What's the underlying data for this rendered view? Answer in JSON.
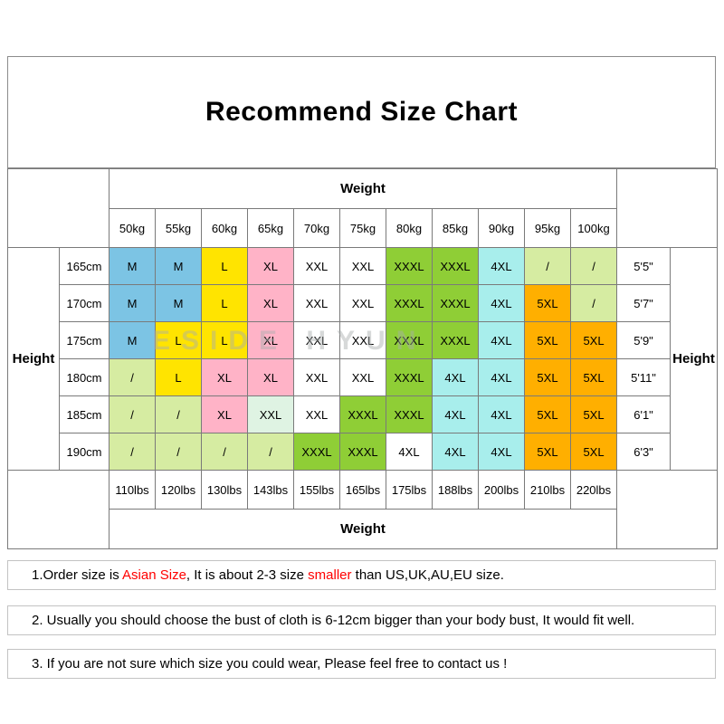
{
  "title": "Recommend Size Chart",
  "watermark": "ESIDE HYUN",
  "colors": {
    "blue": "#7CC4E4",
    "yellow": "#FFE400",
    "pink": "#FFB3C7",
    "white": "#FFFFFF",
    "green": "#8FCE36",
    "cyan": "#A8EEEC",
    "orange": "#FFAF00",
    "pale": "#D6ECA2",
    "mint": "#DFF3E3"
  },
  "table": {
    "weight_header_top": "Weight",
    "weight_header_bottom": "Weight",
    "height_header_left": "Height",
    "height_header_right": "Height",
    "kg_labels": [
      "50kg",
      "55kg",
      "60kg",
      "65kg",
      "70kg",
      "75kg",
      "80kg",
      "85kg",
      "90kg",
      "95kg",
      "100kg"
    ],
    "lbs_labels": [
      "110lbs",
      "120lbs",
      "130lbs",
      "143lbs",
      "155lbs",
      "165lbs",
      "175lbs",
      "188lbs",
      "200lbs",
      "210lbs",
      "220lbs"
    ],
    "rows": [
      {
        "cm": "165cm",
        "ft": "5'5\"",
        "cells": [
          {
            "t": "M",
            "c": "blue"
          },
          {
            "t": "M",
            "c": "blue"
          },
          {
            "t": "L",
            "c": "yellow"
          },
          {
            "t": "XL",
            "c": "pink"
          },
          {
            "t": "XXL",
            "c": "white"
          },
          {
            "t": "XXL",
            "c": "white"
          },
          {
            "t": "XXXL",
            "c": "green"
          },
          {
            "t": "XXXL",
            "c": "green"
          },
          {
            "t": "4XL",
            "c": "cyan"
          },
          {
            "t": "/",
            "c": "pale"
          },
          {
            "t": "/",
            "c": "pale"
          }
        ]
      },
      {
        "cm": "170cm",
        "ft": "5'7\"",
        "cells": [
          {
            "t": "M",
            "c": "blue"
          },
          {
            "t": "M",
            "c": "blue"
          },
          {
            "t": "L",
            "c": "yellow"
          },
          {
            "t": "XL",
            "c": "pink"
          },
          {
            "t": "XXL",
            "c": "white"
          },
          {
            "t": "XXL",
            "c": "white"
          },
          {
            "t": "XXXL",
            "c": "green"
          },
          {
            "t": "XXXL",
            "c": "green"
          },
          {
            "t": "4XL",
            "c": "cyan"
          },
          {
            "t": "5XL",
            "c": "orange"
          },
          {
            "t": "/",
            "c": "pale"
          }
        ]
      },
      {
        "cm": "175cm",
        "ft": "5'9\"",
        "cells": [
          {
            "t": "M",
            "c": "blue"
          },
          {
            "t": "L",
            "c": "yellow"
          },
          {
            "t": "L",
            "c": "yellow"
          },
          {
            "t": "XL",
            "c": "pink"
          },
          {
            "t": "XXL",
            "c": "white"
          },
          {
            "t": "XXL",
            "c": "white"
          },
          {
            "t": "XXXL",
            "c": "green"
          },
          {
            "t": "XXXL",
            "c": "green"
          },
          {
            "t": "4XL",
            "c": "cyan"
          },
          {
            "t": "5XL",
            "c": "orange"
          },
          {
            "t": "5XL",
            "c": "orange"
          }
        ]
      },
      {
        "cm": "180cm",
        "ft": "5'11\"",
        "cells": [
          {
            "t": "/",
            "c": "pale"
          },
          {
            "t": "L",
            "c": "yellow"
          },
          {
            "t": "XL",
            "c": "pink"
          },
          {
            "t": "XL",
            "c": "pink"
          },
          {
            "t": "XXL",
            "c": "white"
          },
          {
            "t": "XXL",
            "c": "white"
          },
          {
            "t": "XXXL",
            "c": "green"
          },
          {
            "t": "4XL",
            "c": "cyan"
          },
          {
            "t": "4XL",
            "c": "cyan"
          },
          {
            "t": "5XL",
            "c": "orange"
          },
          {
            "t": "5XL",
            "c": "orange"
          }
        ]
      },
      {
        "cm": "185cm",
        "ft": "6'1\"",
        "cells": [
          {
            "t": "/",
            "c": "pale"
          },
          {
            "t": "/",
            "c": "pale"
          },
          {
            "t": "XL",
            "c": "pink"
          },
          {
            "t": "XXL",
            "c": "mint"
          },
          {
            "t": "XXL",
            "c": "white"
          },
          {
            "t": "XXXL",
            "c": "green"
          },
          {
            "t": "XXXL",
            "c": "green"
          },
          {
            "t": "4XL",
            "c": "cyan"
          },
          {
            "t": "4XL",
            "c": "cyan"
          },
          {
            "t": "5XL",
            "c": "orange"
          },
          {
            "t": "5XL",
            "c": "orange"
          }
        ]
      },
      {
        "cm": "190cm",
        "ft": "6'3\"",
        "cells": [
          {
            "t": "/",
            "c": "pale"
          },
          {
            "t": "/",
            "c": "pale"
          },
          {
            "t": "/",
            "c": "pale"
          },
          {
            "t": "/",
            "c": "pale"
          },
          {
            "t": "XXXL",
            "c": "green"
          },
          {
            "t": "XXXL",
            "c": "green"
          },
          {
            "t": "4XL",
            "c": "white"
          },
          {
            "t": "4XL",
            "c": "cyan"
          },
          {
            "t": "4XL",
            "c": "cyan"
          },
          {
            "t": "5XL",
            "c": "orange"
          },
          {
            "t": "5XL",
            "c": "orange"
          }
        ]
      }
    ]
  },
  "notes": [
    {
      "segments": [
        {
          "text": "1.Order size is ",
          "red": false
        },
        {
          "text": "Asian Size",
          "red": true
        },
        {
          "text": ", It is about 2-3 size ",
          "red": false
        },
        {
          "text": "smaller",
          "red": true
        },
        {
          "text": " than US,UK,AU,EU size.",
          "red": false
        }
      ]
    },
    {
      "segments": [
        {
          "text": "2. Usually you should choose the bust of cloth is 6-12cm bigger than your body bust, It would fit well.",
          "red": false
        }
      ]
    },
    {
      "segments": [
        {
          "text": "3. If you are not sure which size you could wear, Please feel free to contact us !",
          "red": false
        }
      ]
    }
  ],
  "chart_data": {
    "type": "table",
    "title": "Recommend Size Chart",
    "weight_kg": [
      "50kg",
      "55kg",
      "60kg",
      "65kg",
      "70kg",
      "75kg",
      "80kg",
      "85kg",
      "90kg",
      "95kg",
      "100kg"
    ],
    "weight_lbs": [
      "110lbs",
      "120lbs",
      "130lbs",
      "143lbs",
      "155lbs",
      "165lbs",
      "175lbs",
      "188lbs",
      "200lbs",
      "210lbs",
      "220lbs"
    ],
    "height_cm": [
      "165cm",
      "170cm",
      "175cm",
      "180cm",
      "185cm",
      "190cm"
    ],
    "height_ft": [
      "5'5\"",
      "5'7\"",
      "5'9\"",
      "5'11\"",
      "6'1\"",
      "6'3\""
    ],
    "size_matrix": [
      [
        "M",
        "M",
        "L",
        "XL",
        "XXL",
        "XXL",
        "XXXL",
        "XXXL",
        "4XL",
        "/",
        "/"
      ],
      [
        "M",
        "M",
        "L",
        "XL",
        "XXL",
        "XXL",
        "XXXL",
        "XXXL",
        "4XL",
        "5XL",
        "/"
      ],
      [
        "M",
        "L",
        "L",
        "XL",
        "XXL",
        "XXL",
        "XXXL",
        "XXXL",
        "4XL",
        "5XL",
        "5XL"
      ],
      [
        "/",
        "L",
        "XL",
        "XL",
        "XXL",
        "XXL",
        "XXXL",
        "4XL",
        "4XL",
        "5XL",
        "5XL"
      ],
      [
        "/",
        "/",
        "XL",
        "XXL",
        "XXL",
        "XXXL",
        "XXXL",
        "4XL",
        "4XL",
        "5XL",
        "5XL"
      ],
      [
        "/",
        "/",
        "/",
        "/",
        "XXXL",
        "XXXL",
        "4XL",
        "4XL",
        "4XL",
        "5XL",
        "5XL"
      ]
    ]
  }
}
